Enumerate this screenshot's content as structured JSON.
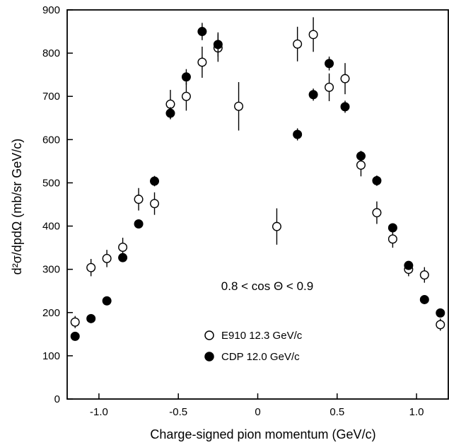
{
  "chart_data": {
    "type": "scatter",
    "xlabel": "Charge-signed pion momentum (GeV/c)",
    "ylabel": "d²σ/dpdΩ (mb/sr GeV/c)",
    "xlim": [
      -1.2,
      1.2
    ],
    "ylim": [
      0,
      900
    ],
    "x_ticks": [
      -1.0,
      -0.5,
      0,
      0.5,
      1.0
    ],
    "x_tick_labels": [
      "-1.0",
      "-0.5",
      "0",
      "0.5",
      "1.0"
    ],
    "y_ticks": [
      0,
      100,
      200,
      300,
      400,
      500,
      600,
      700,
      800,
      900
    ],
    "y_tick_labels": [
      "0",
      "100",
      "200",
      "300",
      "400",
      "500",
      "600",
      "700",
      "800",
      "900"
    ],
    "grid": false,
    "annotation": "0.8 < cos Θ < 0.9",
    "legend_position": "lower-center",
    "series": [
      {
        "name": "E910 12.3 GeV/c",
        "marker": "open-circle",
        "points": [
          {
            "x": -1.15,
            "y": 178,
            "err": 14
          },
          {
            "x": -1.05,
            "y": 304,
            "err": 20
          },
          {
            "x": -0.95,
            "y": 325,
            "err": 20
          },
          {
            "x": -0.85,
            "y": 351,
            "err": 22
          },
          {
            "x": -0.75,
            "y": 462,
            "err": 26
          },
          {
            "x": -0.65,
            "y": 452,
            "err": 26
          },
          {
            "x": -0.55,
            "y": 682,
            "err": 33
          },
          {
            "x": -0.45,
            "y": 700,
            "err": 33
          },
          {
            "x": -0.35,
            "y": 779,
            "err": 36
          },
          {
            "x": -0.25,
            "y": 812,
            "err": 32
          },
          {
            "x": -0.12,
            "y": 677,
            "err": 56
          },
          {
            "x": 0.12,
            "y": 399,
            "err": 42
          },
          {
            "x": 0.25,
            "y": 821,
            "err": 40
          },
          {
            "x": 0.35,
            "y": 843,
            "err": 40
          },
          {
            "x": 0.45,
            "y": 721,
            "err": 32
          },
          {
            "x": 0.55,
            "y": 741,
            "err": 36
          },
          {
            "x": 0.65,
            "y": 541,
            "err": 26
          },
          {
            "x": 0.75,
            "y": 431,
            "err": 26
          },
          {
            "x": 0.85,
            "y": 370,
            "err": 20
          },
          {
            "x": 0.95,
            "y": 300,
            "err": 16
          },
          {
            "x": 1.05,
            "y": 287,
            "err": 18
          },
          {
            "x": 1.15,
            "y": 172,
            "err": 14
          }
        ]
      },
      {
        "name": "CDP 12.0 GeV/c",
        "marker": "filled-circle",
        "points": [
          {
            "x": -1.15,
            "y": 145,
            "err": 0
          },
          {
            "x": -1.05,
            "y": 186,
            "err": 0
          },
          {
            "x": -0.95,
            "y": 227,
            "err": 0
          },
          {
            "x": -0.85,
            "y": 327,
            "err": 0
          },
          {
            "x": -0.75,
            "y": 405,
            "err": 10
          },
          {
            "x": -0.65,
            "y": 504,
            "err": 12
          },
          {
            "x": -0.55,
            "y": 661,
            "err": 14
          },
          {
            "x": -0.45,
            "y": 745,
            "err": 18
          },
          {
            "x": -0.35,
            "y": 850,
            "err": 20
          },
          {
            "x": -0.25,
            "y": 820,
            "err": 28
          },
          {
            "x": 0.25,
            "y": 612,
            "err": 14
          },
          {
            "x": 0.35,
            "y": 704,
            "err": 14
          },
          {
            "x": 0.45,
            "y": 776,
            "err": 16
          },
          {
            "x": 0.55,
            "y": 676,
            "err": 14
          },
          {
            "x": 0.65,
            "y": 562,
            "err": 12
          },
          {
            "x": 0.75,
            "y": 505,
            "err": 12
          },
          {
            "x": 0.85,
            "y": 396,
            "err": 10
          },
          {
            "x": 0.95,
            "y": 309,
            "err": 10
          },
          {
            "x": 1.05,
            "y": 230,
            "err": 0
          },
          {
            "x": 1.15,
            "y": 199,
            "err": 0
          }
        ]
      }
    ]
  }
}
